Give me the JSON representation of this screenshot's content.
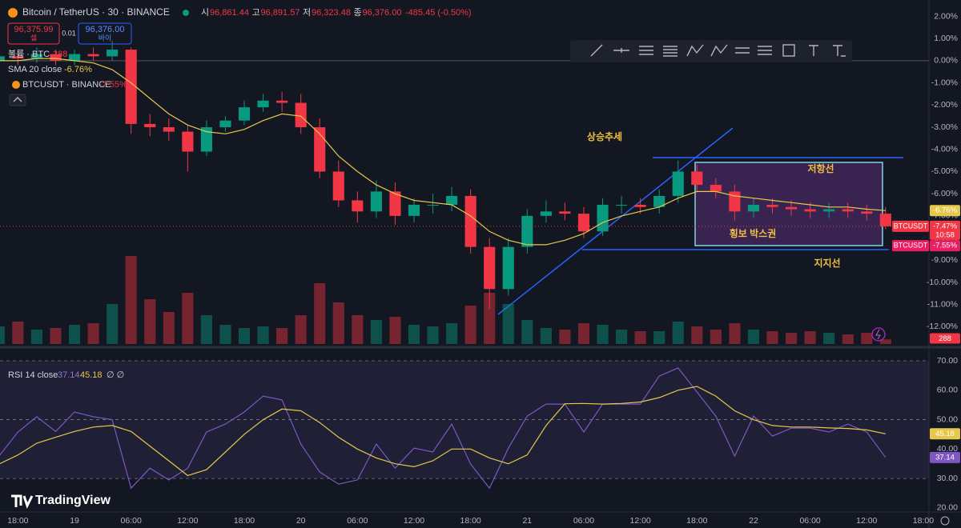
{
  "header": {
    "symbol": "Bitcoin / TetherUS · 30 · BINANCE",
    "ohlc": [
      {
        "key": "시",
        "value": "96,861.44"
      },
      {
        "key": "고",
        "value": "96,891.57"
      },
      {
        "key": "저",
        "value": "96,323.48"
      },
      {
        "key": "종",
        "value": "96,376.00"
      }
    ],
    "change": "-485.45 (-0.50%)",
    "sell": {
      "price": "96,375.99",
      "label": "셀"
    },
    "spread": "0.01",
    "buy": {
      "price": "96,376.00",
      "label": "바이"
    }
  },
  "annotations": [
    "상승추세",
    "저항선",
    "횡보 박스권",
    "지지선"
  ],
  "logo": "TradingView",
  "chart_data": {
    "type": "candlestick",
    "grid": false,
    "x": [
      -2,
      0,
      2,
      4,
      6,
      8,
      10,
      12,
      14,
      16,
      18,
      20,
      22,
      24,
      26,
      28,
      30,
      32,
      34,
      36,
      38,
      40,
      42,
      44,
      46,
      48,
      50,
      52,
      54,
      56,
      58,
      60,
      62,
      64,
      66,
      68,
      70,
      72,
      74,
      76,
      78,
      80,
      82,
      84,
      86,
      88,
      90,
      92
    ],
    "xlim": [
      -1.9,
      96.6
    ],
    "xticks": [
      {
        "value": 0,
        "label": "18:00"
      },
      {
        "value": 6,
        "label": "19"
      },
      {
        "value": 12,
        "label": "06:00"
      },
      {
        "value": 18,
        "label": "12:00"
      },
      {
        "value": 24,
        "label": "18:00"
      },
      {
        "value": 30,
        "label": "20"
      },
      {
        "value": 36,
        "label": "06:00"
      },
      {
        "value": 42,
        "label": "12:00"
      },
      {
        "value": 48,
        "label": "18:00"
      },
      {
        "value": 54,
        "label": "21"
      },
      {
        "value": 60,
        "label": "06:00"
      },
      {
        "value": 66,
        "label": "12:00"
      },
      {
        "value": 72,
        "label": "18:00"
      },
      {
        "value": 78,
        "label": "22"
      },
      {
        "value": 84,
        "label": "06:00"
      },
      {
        "value": 90,
        "label": "12:00"
      },
      {
        "value": 96,
        "label": "18:00"
      }
    ],
    "ylim": [
      -12.78,
      2.74
    ],
    "yticks": [
      {
        "value": 2,
        "label": "2.00%"
      },
      {
        "value": 1,
        "label": "1.00%"
      },
      {
        "value": 0,
        "label": "0.00%"
      },
      {
        "value": -1,
        "label": "-1.00%"
      },
      {
        "value": -2,
        "label": "-2.00%"
      },
      {
        "value": -3,
        "label": "-3.00%"
      },
      {
        "value": -4,
        "label": "-4.00%"
      },
      {
        "value": -5,
        "label": "-5.00%"
      },
      {
        "value": -6,
        "label": "-6.00%"
      },
      {
        "value": -7,
        "label": "-7.00%"
      },
      {
        "value": -8,
        "label": "-8.00%"
      },
      {
        "value": -9,
        "label": "-9.00%"
      },
      {
        "value": -10,
        "label": "-10.00%"
      },
      {
        "value": -11,
        "label": "-11.00%"
      },
      {
        "value": -12,
        "label": "-12.00%"
      }
    ],
    "candles": {
      "name": "BTCUSDT",
      "up_color": "#089981",
      "down_color": "#f23645",
      "close_label": "-7.47%",
      "countdown": "10:58",
      "open": [
        0.0,
        0.2,
        0.1,
        0.3,
        0.0,
        0.3,
        0.2,
        0.5,
        -2.85,
        -3.0,
        -3.2,
        -4.1,
        -3.0,
        -2.7,
        -2.1,
        -1.8,
        -1.9,
        -3.0,
        -5.0,
        -6.3,
        -6.8,
        -5.9,
        -7.0,
        -6.5,
        -6.5,
        -6.1,
        -8.4,
        -10.3,
        -8.4,
        -7.0,
        -6.8,
        -6.9,
        -7.7,
        -6.5,
        -6.5,
        -6.6,
        -6.1,
        -5.0,
        -5.6,
        -5.9,
        -6.8,
        -6.5,
        -6.6,
        -6.7,
        -6.8,
        -6.7,
        -6.8,
        -6.9
      ],
      "high": [
        0.4,
        0.5,
        0.6,
        0.5,
        0.5,
        0.6,
        0.9,
        0.6,
        -2.4,
        -2.6,
        -2.9,
        -2.7,
        -2.5,
        -1.8,
        -1.5,
        -1.4,
        -1.5,
        -2.6,
        -4.5,
        -5.9,
        -5.4,
        -5.5,
        -6.2,
        -6.0,
        -5.7,
        -5.8,
        -8.0,
        -8.0,
        -6.7,
        -6.3,
        -6.4,
        -6.6,
        -6.2,
        -6.1,
        -6.2,
        -5.8,
        -4.5,
        -4.7,
        -5.3,
        -5.6,
        -6.2,
        -6.2,
        -6.3,
        -6.4,
        -6.4,
        -6.4,
        -6.5,
        -6.6
      ],
      "low": [
        -0.3,
        -0.2,
        -0.1,
        -0.2,
        -0.2,
        0.0,
        0.0,
        -3.3,
        -3.4,
        -3.6,
        -5.0,
        -4.3,
        -3.2,
        -2.9,
        -2.3,
        -2.3,
        -3.3,
        -5.3,
        -6.6,
        -7.3,
        -7.1,
        -7.4,
        -7.3,
        -6.9,
        -6.8,
        -8.7,
        -11.2,
        -10.6,
        -8.7,
        -7.3,
        -7.2,
        -8.0,
        -7.9,
        -6.9,
        -6.9,
        -6.9,
        -6.4,
        -5.9,
        -6.2,
        -7.2,
        -7.1,
        -6.9,
        -7.0,
        -7.1,
        -7.1,
        -7.1,
        -7.2,
        -7.6
      ],
      "close": [
        0.2,
        0.1,
        0.3,
        0.0,
        0.3,
        0.2,
        0.5,
        -2.85,
        -3.0,
        -3.2,
        -4.1,
        -3.0,
        -2.7,
        -2.1,
        -1.8,
        -1.9,
        -3.0,
        -5.0,
        -6.3,
        -6.8,
        -5.9,
        -7.0,
        -6.5,
        -6.5,
        -6.1,
        -8.4,
        -10.3,
        -8.4,
        -7.0,
        -6.8,
        -6.9,
        -7.7,
        -6.5,
        -6.5,
        -6.6,
        -6.1,
        -5.0,
        -5.6,
        -5.9,
        -6.8,
        -6.5,
        -6.6,
        -6.7,
        -6.8,
        -6.7,
        -6.8,
        -6.9,
        -7.47
      ]
    },
    "compare": {
      "name": "BTCUSDT · BINANCE",
      "tag": "BTCUSDT",
      "value": -7.55,
      "value_label": "-7.55%"
    },
    "volume": {
      "name": "볼륨 · BTC",
      "ylim": [
        0,
        6000
      ],
      "values": [
        1100,
        1400,
        900,
        1000,
        1200,
        1300,
        2500,
        5500,
        2800,
        2000,
        3200,
        1800,
        1200,
        1000,
        1100,
        1000,
        1800,
        3800,
        2600,
        1800,
        1500,
        1700,
        1200,
        1100,
        1300,
        2400,
        3200,
        2500,
        1500,
        1000,
        900,
        1300,
        1200,
        900,
        800,
        800,
        1400,
        1100,
        900,
        1300,
        900,
        800,
        700,
        800,
        700,
        600,
        700,
        288
      ]
    },
    "sma": {
      "name": "SMA 20 close",
      "color": "#e6c84a",
      "value_label": "-6.76%",
      "values": [
        0.0,
        0.0,
        0.1,
        0.1,
        0.0,
        -0.1,
        -0.4,
        -1.0,
        -1.7,
        -2.4,
        -2.9,
        -3.2,
        -3.3,
        -3.1,
        -2.7,
        -2.4,
        -2.5,
        -3.3,
        -4.3,
        -5.0,
        -5.6,
        -6.0,
        -6.3,
        -6.4,
        -6.5,
        -7.0,
        -7.7,
        -8.1,
        -8.3,
        -8.3,
        -8.1,
        -7.8,
        -7.3,
        -7.0,
        -6.8,
        -6.6,
        -6.2,
        -5.9,
        -5.9,
        -6.1,
        -6.2,
        -6.3,
        -6.4,
        -6.5,
        -6.6,
        -6.6,
        -6.7,
        -6.76
      ]
    },
    "rsi": {
      "name": "RSI 14 close",
      "extra": "∅ ∅",
      "ylim": [
        18.6,
        73.0
      ],
      "bands": [
        70,
        50,
        30
      ],
      "yticks": [
        {
          "value": 70,
          "label": "70.00"
        },
        {
          "value": 60,
          "label": "60.00"
        },
        {
          "value": 50,
          "label": "50.00"
        },
        {
          "value": 40,
          "label": "40.00"
        },
        {
          "value": 30,
          "label": "30.00"
        },
        {
          "value": 20,
          "label": "20.00"
        }
      ],
      "color": "#7e57c2",
      "values": [
        37.6,
        45.8,
        51,
        46,
        52.6,
        51,
        50,
        26.7,
        33.5,
        29.5,
        33.5,
        45.8,
        48.5,
        52.6,
        58,
        56.7,
        41.7,
        32.2,
        28.1,
        29.5,
        41.7,
        33.5,
        40.3,
        39,
        48.5,
        34.9,
        26.7,
        40.3,
        51.2,
        55.3,
        55.3,
        45.8,
        55.3,
        55.3,
        55.3,
        64.8,
        67.6,
        59.4,
        51.2,
        37.6,
        51.2,
        44.4,
        47.1,
        47.1,
        45.8,
        48.5,
        45.8,
        37.14
      ],
      "ma_color": "#e6c84a",
      "ma_values": [
        34.9,
        38,
        42,
        44,
        46,
        47.5,
        48,
        46,
        41,
        36,
        31,
        33,
        39,
        45,
        50,
        53.6,
        53,
        49,
        44,
        40,
        37,
        35,
        34,
        36,
        40,
        40,
        37,
        35,
        38,
        48,
        55.4,
        55.5,
        55.3,
        55.5,
        56,
        57.5,
        60,
        61.3,
        58,
        53,
        50,
        48,
        47.5,
        47.5,
        47.2,
        47,
        46.5,
        45.18
      ]
    }
  }
}
